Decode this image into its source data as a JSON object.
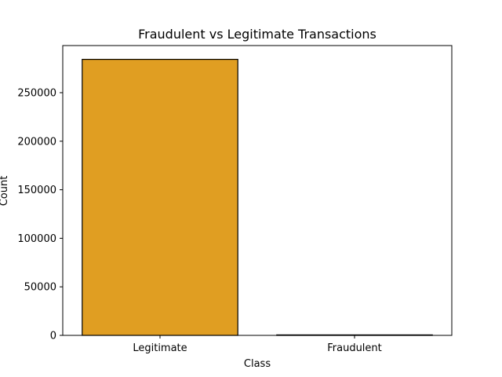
{
  "chart_data": {
    "type": "bar",
    "title": "Fraudulent vs Legitimate Transactions",
    "xlabel": "Class",
    "ylabel": "Count",
    "categories": [
      "Legitimate",
      "Fraudulent"
    ],
    "values": [
      284315,
      492
    ],
    "ylim": [
      0,
      298531
    ],
    "yticks": [
      0,
      50000,
      100000,
      150000,
      200000,
      250000
    ],
    "ytick_labels": [
      "0",
      "50000",
      "100000",
      "150000",
      "200000",
      "250000"
    ],
    "bar_color": "#e09e22",
    "edge_color": "#000000",
    "grid": false,
    "legend": false
  }
}
